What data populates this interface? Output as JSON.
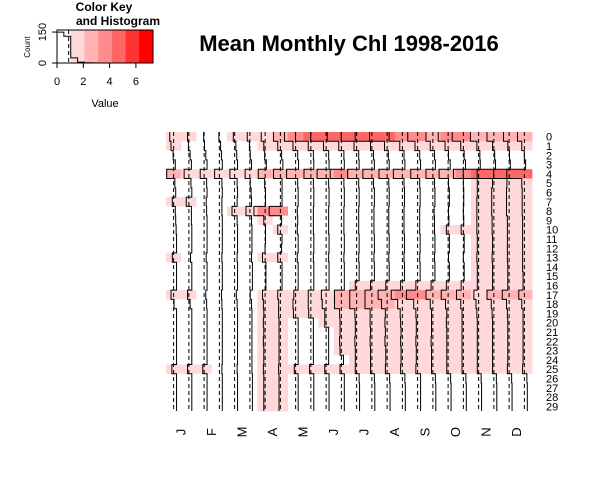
{
  "chart_data": {
    "type": "heatmap",
    "title": "Mean Monthly Chl 1998-2016",
    "color_key": {
      "title_line1": "Color Key",
      "title_line2": "and Histogram",
      "xlabel": "Value",
      "ylabel": "Count",
      "x_ticks": [
        "0",
        "2",
        "4",
        "6"
      ],
      "y_ticks": [
        "0",
        "150"
      ],
      "xlim": [
        0,
        7.3
      ],
      "ylim": [
        0,
        160
      ],
      "colors": [
        "#ffffff",
        "#ffd9d9",
        "#ffb3b3",
        "#ff8c8c",
        "#ff6666",
        "#ff3333",
        "#ff0000"
      ],
      "histogram": [
        150,
        130,
        25,
        4,
        1,
        0.5,
        0.2,
        0,
        0,
        0,
        0,
        0,
        0,
        0
      ]
    },
    "x_labels": [
      "J",
      "F",
      "M",
      "A",
      "M",
      "J",
      "J",
      "A",
      "S",
      "O",
      "N",
      "D"
    ],
    "y_labels": [
      "0",
      "1",
      "2",
      "3",
      "4",
      "5",
      "6",
      "7",
      "8",
      "9",
      "10",
      "11",
      "12",
      "13",
      "14",
      "15",
      "16",
      "17",
      "18",
      "19",
      "20",
      "21",
      "22",
      "23",
      "24",
      "25",
      "26",
      "27",
      "28",
      "29"
    ],
    "value_range": [
      0,
      7.3
    ],
    "trace_color": "#000000",
    "values": [
      [
        1.8,
        1.2,
        1.0,
        1.0,
        1.2,
        1.5,
        1.8,
        2.5,
        3.5,
        4.5,
        4.5,
        4.2,
        4.5,
        4.8,
        5.0,
        4.0,
        3.2,
        2.5,
        3.2,
        3.5,
        2.8,
        2.5,
        2.2,
        2.5
      ],
      [
        1.5,
        1.0,
        0.8,
        0.6,
        0.6,
        1.0,
        1.2,
        1.5,
        1.5,
        1.5,
        1.5,
        1.5,
        1.5,
        1.2,
        1.5,
        1.5,
        1.5,
        1.5,
        1.6,
        1.5,
        1.3,
        1.2,
        1.2,
        1.5
      ],
      [
        1.0,
        0.6,
        0.5,
        0.4,
        0.4,
        0.8,
        1.0,
        0.6,
        0.4,
        0.3,
        0.3,
        0.3,
        0.4,
        0.5,
        0.6,
        0.5,
        0.4,
        0.5,
        0.8,
        0.7,
        0.6,
        0.7,
        0.8,
        0.9
      ],
      [
        0.5,
        0.3,
        0.2,
        0.2,
        0.2,
        0.5,
        0.6,
        0.3,
        0.2,
        0.2,
        0.2,
        0.2,
        0.3,
        0.3,
        0.4,
        0.3,
        0.2,
        0.3,
        0.4,
        0.4,
        0.5,
        0.5,
        0.6,
        0.6
      ],
      [
        2.5,
        2.0,
        1.8,
        2.0,
        2.0,
        2.0,
        2.5,
        2.5,
        3.0,
        2.5,
        3.0,
        3.5,
        3.0,
        3.0,
        2.8,
        3.0,
        2.5,
        2.5,
        3.0,
        3.2,
        4.5,
        4.8,
        4.5,
        5.0
      ],
      [
        0.6,
        0.4,
        0.3,
        0.3,
        0.3,
        0.8,
        1.0,
        0.5,
        0.4,
        0.3,
        0.3,
        0.3,
        0.4,
        0.5,
        0.5,
        0.5,
        0.4,
        0.5,
        0.8,
        0.9,
        1.2,
        1.2,
        1.4,
        1.5
      ],
      [
        0.4,
        0.2,
        0.2,
        0.2,
        0.2,
        0.6,
        0.8,
        0.5,
        0.3,
        0.2,
        0.2,
        0.2,
        0.3,
        0.3,
        0.4,
        0.4,
        0.3,
        0.4,
        0.6,
        0.8,
        1.2,
        1.4,
        1.5,
        1.4
      ],
      [
        1.2,
        1.5,
        0.4,
        0.3,
        0.3,
        0.5,
        0.8,
        0.5,
        0.3,
        0.2,
        0.2,
        0.2,
        0.3,
        0.3,
        0.4,
        0.4,
        0.3,
        0.4,
        0.6,
        0.8,
        1.3,
        1.4,
        1.5,
        1.4
      ],
      [
        0.5,
        0.3,
        0.3,
        0.3,
        1.5,
        1.8,
        3.5,
        3.5,
        0.5,
        0.3,
        0.3,
        0.3,
        0.4,
        0.4,
        0.5,
        0.5,
        0.4,
        0.6,
        0.8,
        0.9,
        1.3,
        1.4,
        1.5,
        1.4
      ],
      [
        0.4,
        0.3,
        0.2,
        0.2,
        0.3,
        0.5,
        1.2,
        0.6,
        0.4,
        0.3,
        0.3,
        0.3,
        0.4,
        0.4,
        0.5,
        0.5,
        0.4,
        0.5,
        0.7,
        0.8,
        1.3,
        1.3,
        1.3,
        1.3
      ],
      [
        0.3,
        0.2,
        0.2,
        0.2,
        0.2,
        0.4,
        0.8,
        1.5,
        0.5,
        0.3,
        0.3,
        0.3,
        0.4,
        0.4,
        0.5,
        0.5,
        0.4,
        0.5,
        1.3,
        1.4,
        1.3,
        1.3,
        1.3,
        1.3
      ],
      [
        0.2,
        0.2,
        0.2,
        0.2,
        0.2,
        0.4,
        0.8,
        0.5,
        0.3,
        0.2,
        0.2,
        0.2,
        0.3,
        0.3,
        0.4,
        0.4,
        0.3,
        0.4,
        0.6,
        0.7,
        1.2,
        1.2,
        1.3,
        1.3
      ],
      [
        0.2,
        0.2,
        0.2,
        0.2,
        0.2,
        0.4,
        0.9,
        0.6,
        0.3,
        0.2,
        0.2,
        0.2,
        0.3,
        0.3,
        0.4,
        0.4,
        0.3,
        0.4,
        0.6,
        0.7,
        1.2,
        1.2,
        1.3,
        1.3
      ],
      [
        1.2,
        0.5,
        0.4,
        0.3,
        0.3,
        0.5,
        1.5,
        1.5,
        0.5,
        0.3,
        0.3,
        0.3,
        0.4,
        0.4,
        0.5,
        0.5,
        0.4,
        0.5,
        0.8,
        0.9,
        1.3,
        1.3,
        1.3,
        1.3
      ],
      [
        0.2,
        0.2,
        0.2,
        0.2,
        0.2,
        0.3,
        0.7,
        0.5,
        0.3,
        0.2,
        0.2,
        0.2,
        0.3,
        0.3,
        0.4,
        0.4,
        0.3,
        0.4,
        0.6,
        0.7,
        1.2,
        1.2,
        1.2,
        1.3
      ],
      [
        0.2,
        0.2,
        0.2,
        0.2,
        0.2,
        0.3,
        0.7,
        0.5,
        0.3,
        0.2,
        0.2,
        0.2,
        0.3,
        0.3,
        0.4,
        0.4,
        0.3,
        0.4,
        0.6,
        0.7,
        1.2,
        1.2,
        1.2,
        1.2
      ],
      [
        0.2,
        0.2,
        0.2,
        0.2,
        0.2,
        0.3,
        0.7,
        0.5,
        0.3,
        0.2,
        0.2,
        0.2,
        1.2,
        1.2,
        1.2,
        1.3,
        1.3,
        1.3,
        1.3,
        1.4,
        1.2,
        1.2,
        1.2,
        1.2
      ],
      [
        1.5,
        1.2,
        0.5,
        0.4,
        0.5,
        0.8,
        1.5,
        1.5,
        1.3,
        1.5,
        2.0,
        2.5,
        2.5,
        2.5,
        3.0,
        3.5,
        3.5,
        2.5,
        2.5,
        2.5,
        2.0,
        2.5,
        2.5,
        2.2
      ],
      [
        0.8,
        0.6,
        0.3,
        0.3,
        0.3,
        0.5,
        1.3,
        1.3,
        1.5,
        1.5,
        1.8,
        2.5,
        2.5,
        2.5,
        2.2,
        2.0,
        1.8,
        1.5,
        1.5,
        1.5,
        1.5,
        1.5,
        1.5,
        1.5
      ],
      [
        0.2,
        0.2,
        0.2,
        0.2,
        0.2,
        0.4,
        1.2,
        1.3,
        1.4,
        1.4,
        1.2,
        1.3,
        1.3,
        1.3,
        1.3,
        1.4,
        1.3,
        1.2,
        1.2,
        1.2,
        1.3,
        1.3,
        1.3,
        1.2
      ],
      [
        0.2,
        0.2,
        0.2,
        0.2,
        0.2,
        0.4,
        1.3,
        1.2,
        0.3,
        0.3,
        1.2,
        1.2,
        1.2,
        1.3,
        1.4,
        1.3,
        1.2,
        1.2,
        1.3,
        1.2,
        1.2,
        1.2,
        1.2,
        1.2
      ],
      [
        0.2,
        0.2,
        0.2,
        0.2,
        0.2,
        0.4,
        1.2,
        1.2,
        0.3,
        0.3,
        0.3,
        1.2,
        1.2,
        1.2,
        1.3,
        1.2,
        1.2,
        1.2,
        1.2,
        1.2,
        1.2,
        1.2,
        1.2,
        1.2
      ],
      [
        0.2,
        0.2,
        0.2,
        0.2,
        0.2,
        0.4,
        1.3,
        1.2,
        0.3,
        0.3,
        0.3,
        1.3,
        1.3,
        1.3,
        1.4,
        1.3,
        1.3,
        1.3,
        1.2,
        1.2,
        1.2,
        1.2,
        1.2,
        1.2
      ],
      [
        0.2,
        0.2,
        0.2,
        0.2,
        0.2,
        0.4,
        1.2,
        1.2,
        0.3,
        0.3,
        0.3,
        1.2,
        1.2,
        1.2,
        1.2,
        1.2,
        1.2,
        1.2,
        1.2,
        1.2,
        1.2,
        1.2,
        1.2,
        1.2
      ],
      [
        0.2,
        0.2,
        0.2,
        0.2,
        0.2,
        0.4,
        1.2,
        1.2,
        0.3,
        0.3,
        0.3,
        0.4,
        1.2,
        1.2,
        1.2,
        1.2,
        1.2,
        1.2,
        1.2,
        1.2,
        1.2,
        1.2,
        1.2,
        1.2
      ],
      [
        1.3,
        1.2,
        1.2,
        0.3,
        0.3,
        0.4,
        1.3,
        1.3,
        1.2,
        1.2,
        1.2,
        1.2,
        1.2,
        1.2,
        1.3,
        1.3,
        1.3,
        1.2,
        1.2,
        1.2,
        1.2,
        1.2,
        1.3,
        1.3
      ],
      [
        0.2,
        0.2,
        0.2,
        0.2,
        0.2,
        0.3,
        1.2,
        1.2,
        0.3,
        0.2,
        0.2,
        0.2,
        0.3,
        0.3,
        0.3,
        0.3,
        0.2,
        0.3,
        0.3,
        0.3,
        0.3,
        0.3,
        0.3,
        0.3
      ],
      [
        0.2,
        0.2,
        0.2,
        0.2,
        0.2,
        0.3,
        1.2,
        1.2,
        0.3,
        0.2,
        0.2,
        0.2,
        0.2,
        0.2,
        0.2,
        0.2,
        0.2,
        0.2,
        0.2,
        0.2,
        0.2,
        0.2,
        0.2,
        0.2
      ],
      [
        0.2,
        0.2,
        0.2,
        0.2,
        0.2,
        0.3,
        1.2,
        1.2,
        0.3,
        0.2,
        0.2,
        0.2,
        0.2,
        0.2,
        0.2,
        0.2,
        0.2,
        0.2,
        0.2,
        0.2,
        0.2,
        0.2,
        0.2,
        0.2
      ],
      [
        0.2,
        0.2,
        0.2,
        0.2,
        0.2,
        0.3,
        1.2,
        1.2,
        0.3,
        0.2,
        0.2,
        0.2,
        0.2,
        0.2,
        0.2,
        0.2,
        0.2,
        0.2,
        0.2,
        0.2,
        0.2,
        0.2,
        0.2,
        0.2
      ]
    ]
  }
}
